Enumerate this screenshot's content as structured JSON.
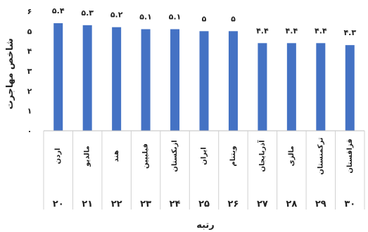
{
  "chart_data": {
    "type": "bar",
    "categories": [
      "اردن",
      "مالديو",
      "هند",
      "فيليپين",
      "ازبكستان",
      "ايران",
      "ويتنام",
      "آذربايجان",
      "مالزى",
      "تركمنستان",
      "قزاقستان"
    ],
    "ranks": [
      "۲۰",
      "۲۱",
      "۲۲",
      "۲۳",
      "۲۴",
      "۲۵",
      "۲۶",
      "۲۷",
      "۲۸",
      "۲۹",
      "۳۰"
    ],
    "values": [
      5.4,
      5.3,
      5.2,
      5.1,
      5.1,
      5.0,
      5.0,
      4.4,
      4.4,
      4.4,
      4.3
    ],
    "value_labels": [
      "۵.۴",
      "۵.۳",
      "۵.۲",
      "۵.۱",
      "۵.۱",
      "۵",
      "۵",
      "۴.۴",
      "۴.۴",
      "۴.۴",
      "۴.۳"
    ],
    "ylim": [
      0,
      6
    ],
    "yticks": [
      0,
      1,
      2,
      3,
      4,
      5,
      6
    ],
    "ytick_labels": [
      "۰",
      "۱",
      "۲",
      "۳",
      "۴",
      "۵",
      "۶"
    ],
    "ylabel": "شاخص مهاجرت",
    "xlabel": "رتبه",
    "bar_color": "#4472C4",
    "grid": false
  }
}
